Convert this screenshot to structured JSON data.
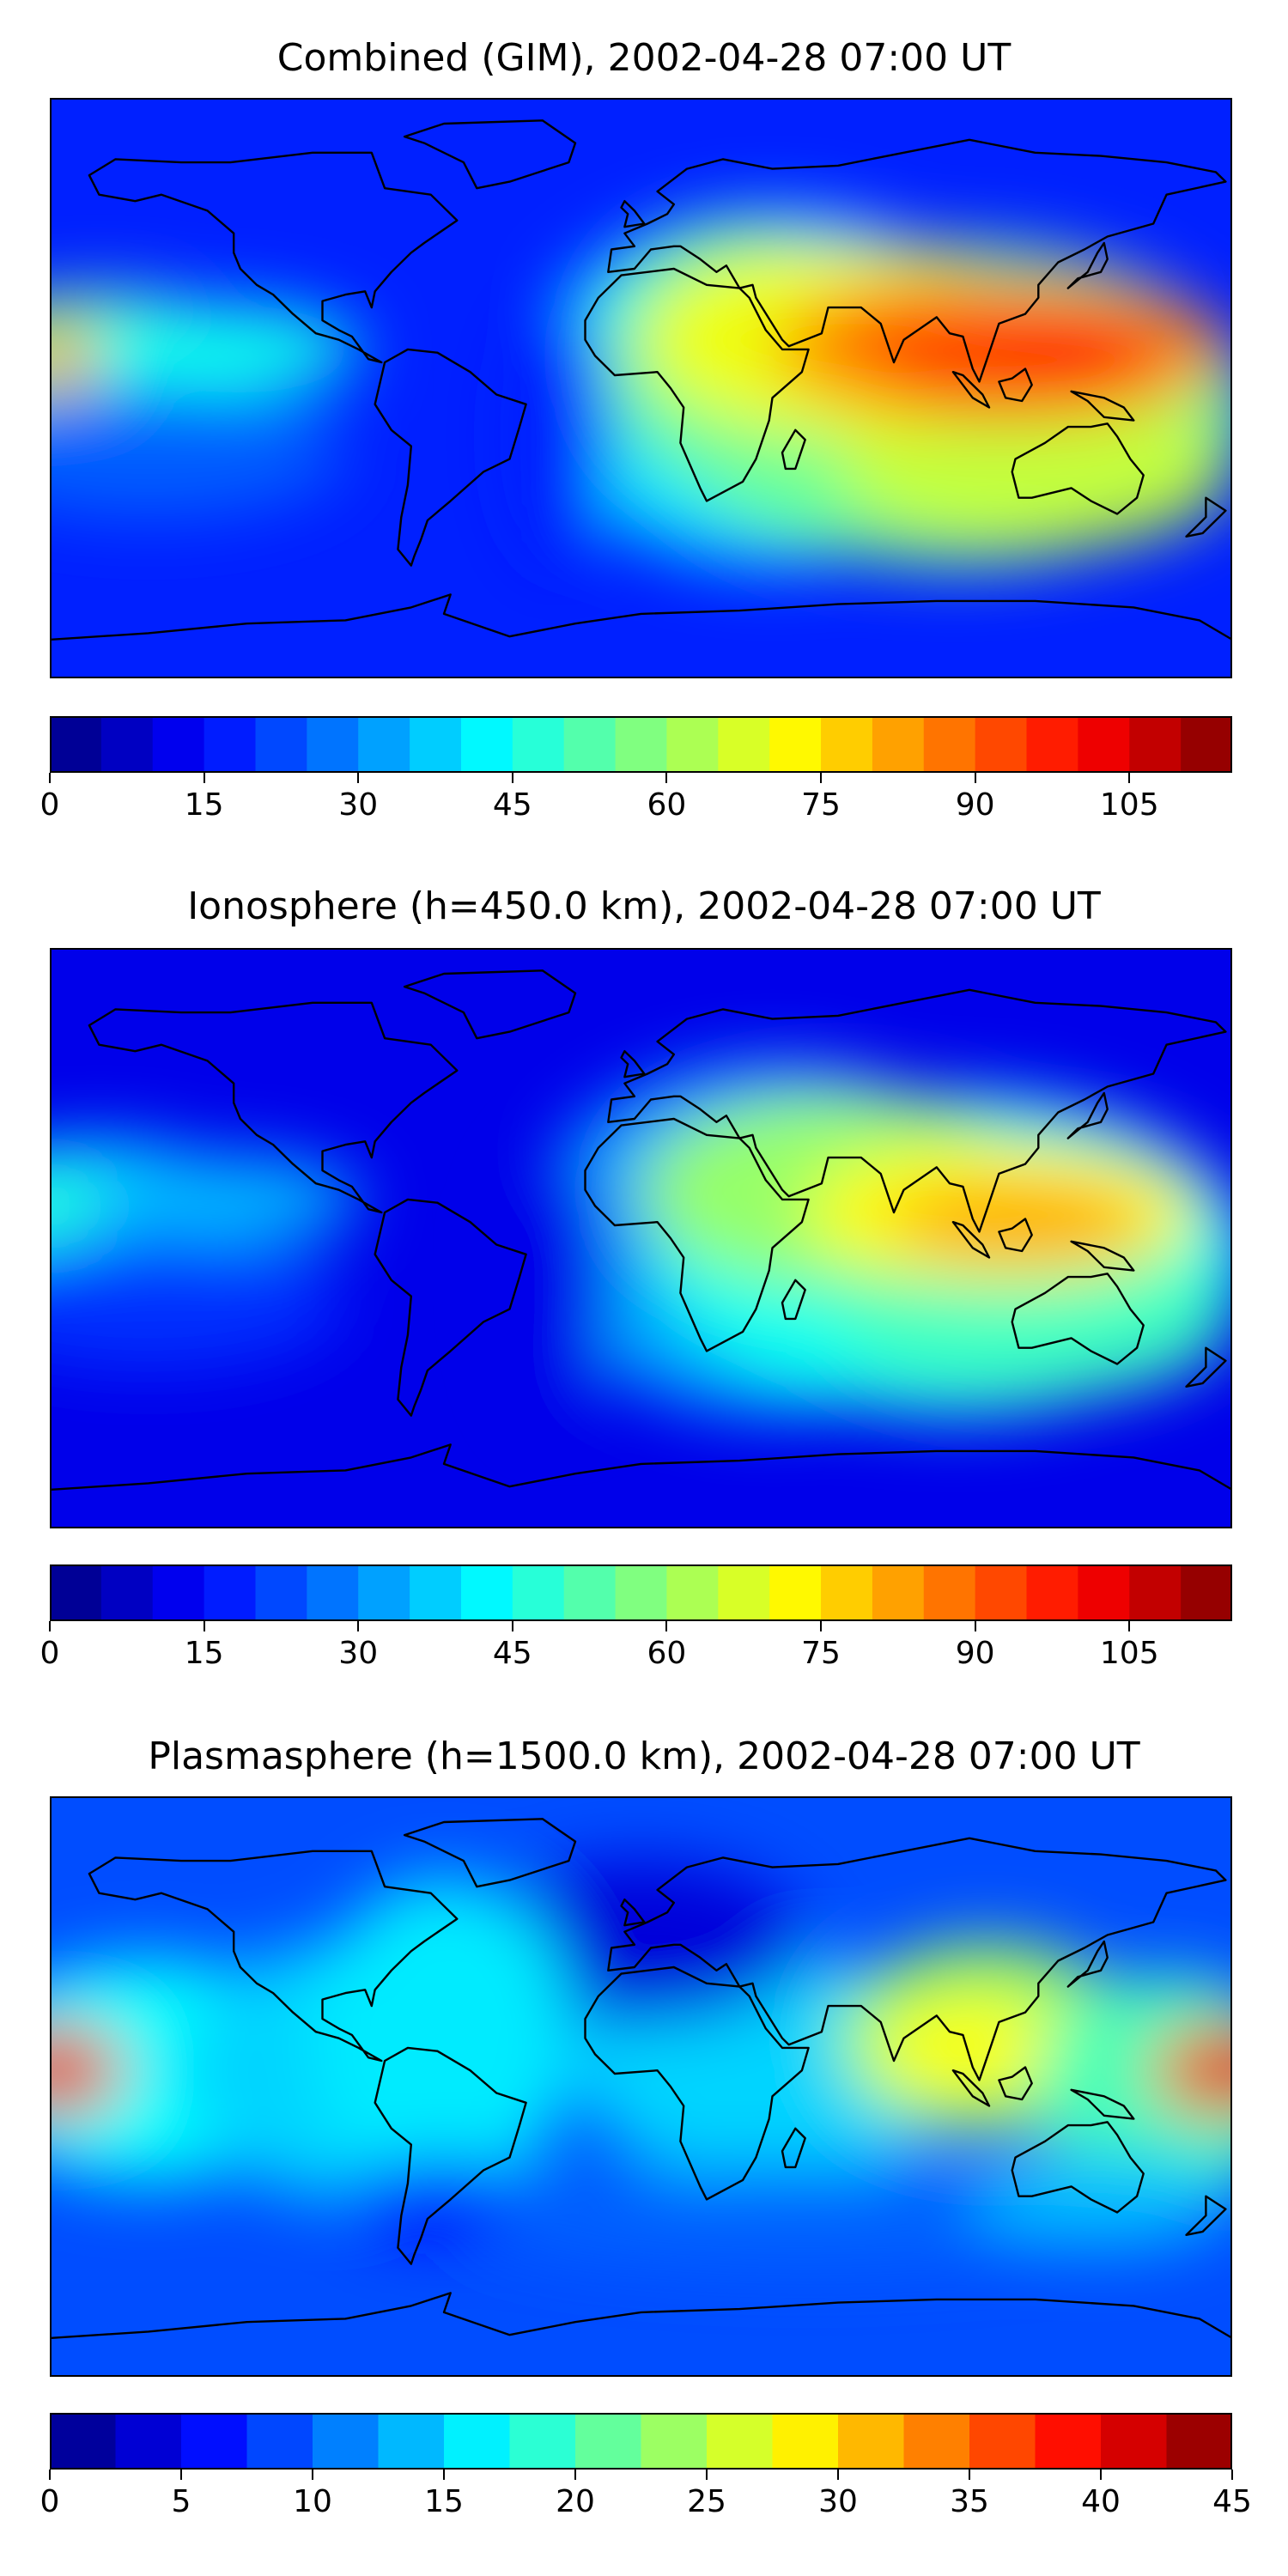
{
  "chart_data": [
    {
      "type": "heatmap",
      "title": "Combined (GIM), 2002-04-28 07:00 UT",
      "colorbar": {
        "min": 0,
        "max": 115,
        "levels": 23,
        "ticks": [
          0,
          15,
          30,
          45,
          60,
          75,
          90,
          105
        ]
      },
      "colormap": "jet",
      "hotspots": [
        {
          "name": "asia-pacific-peak",
          "lon": 110,
          "lat": 10,
          "value": 100
        },
        {
          "name": "pacific-west-edge",
          "lon": -178,
          "lat": 10,
          "value": 82
        }
      ]
    },
    {
      "type": "heatmap",
      "title": "Ionosphere  (h=450.0 km), 2002-04-28 07:00 UT",
      "colorbar": {
        "min": 0,
        "max": 115,
        "levels": 23,
        "ticks": [
          0,
          15,
          30,
          45,
          60,
          75,
          90,
          105
        ]
      },
      "colormap": "jet",
      "hotspots": [
        {
          "name": "asia-pacific-peak",
          "lon": 110,
          "lat": 5,
          "value": 82
        },
        {
          "name": "pacific-west-edge",
          "lon": -178,
          "lat": 10,
          "value": 48
        }
      ]
    },
    {
      "type": "heatmap",
      "title": "Plasmasphere (h=1500.0 km), 2002-04-28 07:00 UT",
      "colorbar": {
        "min": 0,
        "max": 45,
        "levels": 18,
        "ticks": [
          0,
          5,
          10,
          15,
          20,
          25,
          30,
          35,
          40,
          45
        ]
      },
      "colormap": "jet",
      "hotspots": [
        {
          "name": "dateline-peak",
          "lon": 180,
          "lat": 5,
          "value": 42
        },
        {
          "name": "asia-peak",
          "lon": 105,
          "lat": 15,
          "value": 28
        }
      ]
    }
  ]
}
